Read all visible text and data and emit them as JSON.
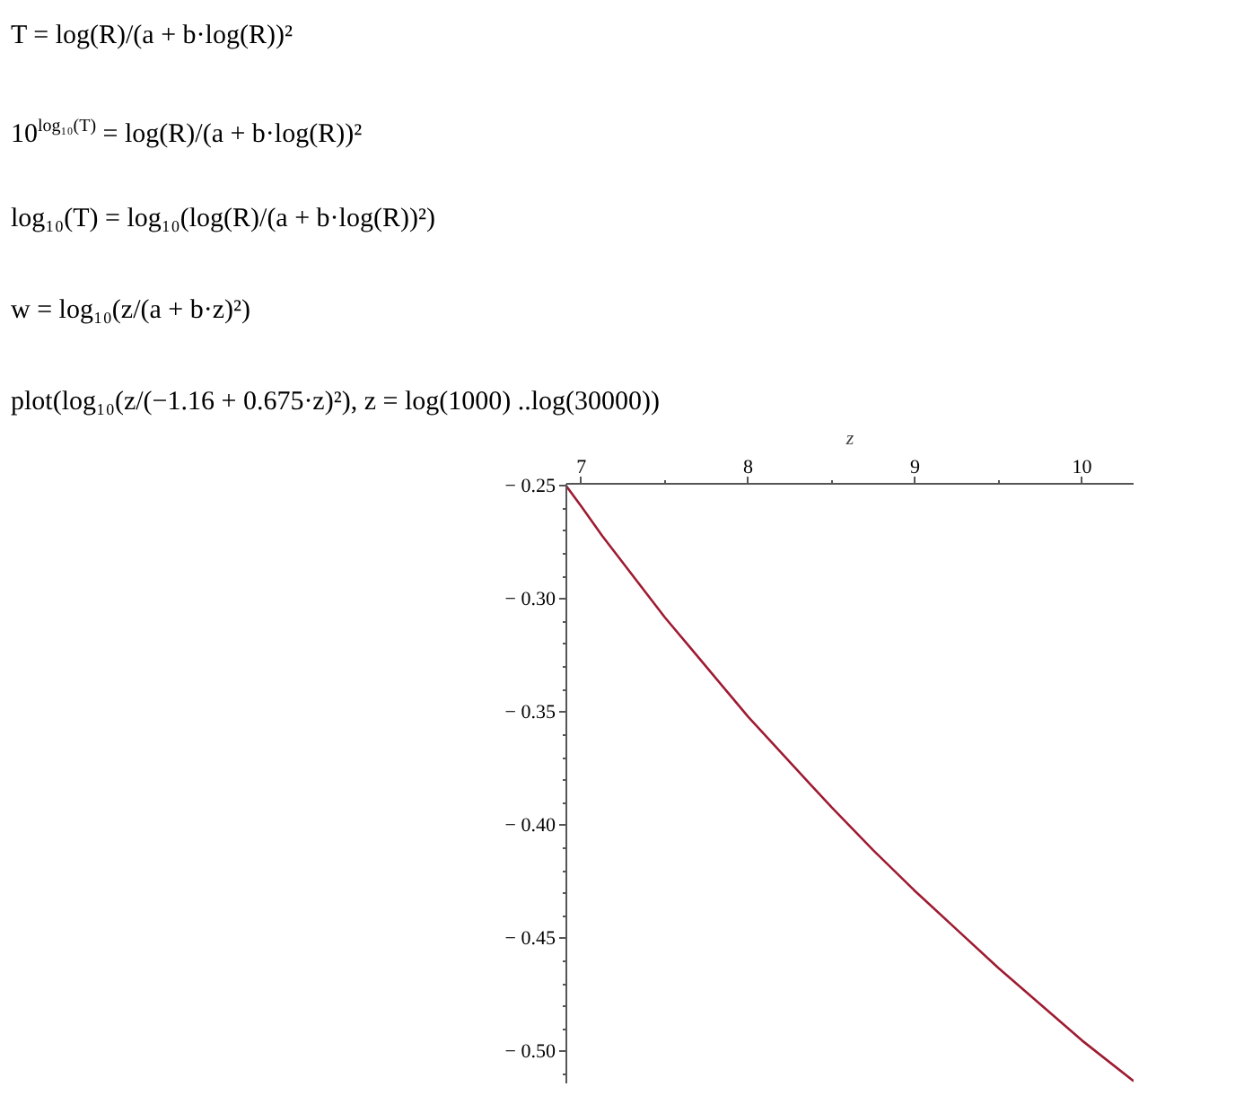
{
  "chart_data": {
    "type": "line",
    "xlabel": "z",
    "annotations": [
      "T = log(R)/(a + b·log(R))²",
      "10$^{log₁₀(T)}$ = log(R)/(a + b·log(R))²",
      "log₁₀(T) = log₁₀(log(R)/(a + b·log(R))²)",
      "w = log₁₀(z/(a + b·z)²)",
      "plot(log₁₀(z/(−1.16 + 0.675·z)²), z = log(1000) ..log(30000))"
    ],
    "x": [
      6.91,
      7,
      7.125,
      7.25,
      7.375,
      7.5,
      7.625,
      7.75,
      7.875,
      8,
      8.125,
      8.25,
      8.375,
      8.5,
      8.75,
      9,
      9.25,
      9.5,
      9.75,
      10,
      10.31
    ],
    "series": [
      {
        "color": "#9e1b32",
        "values": [
          -0.25,
          -0.259,
          -0.272,
          -0.284,
          -0.296,
          -0.308,
          -0.319,
          -0.33,
          -0.341,
          -0.352,
          -0.362,
          -0.372,
          -0.382,
          -0.392,
          -0.411,
          -0.429,
          -0.446,
          -0.463,
          -0.479,
          -0.495,
          -0.513
        ]
      }
    ],
    "xlim": [
      6.91,
      10.31
    ],
    "ylim": [
      -0.514,
      -0.249
    ],
    "xticks": [
      7,
      {
        "value": 7.5,
        "label": null
      },
      8,
      {
        "value": 8.5,
        "label": null
      },
      9,
      {
        "value": 9.5,
        "label": null
      },
      10
    ],
    "yticks": [
      {
        "value": -0.25,
        "label": "− 0.25"
      },
      {
        "value": -0.26,
        "label": null
      },
      {
        "value": -0.27,
        "label": null
      },
      {
        "value": -0.28,
        "label": null
      },
      {
        "value": -0.29,
        "label": null
      },
      {
        "value": -0.3,
        "label": "− 0.30"
      },
      {
        "value": -0.31,
        "label": null
      },
      {
        "value": -0.32,
        "label": null
      },
      {
        "value": -0.33,
        "label": null
      },
      {
        "value": -0.34,
        "label": null
      },
      {
        "value": -0.35,
        "label": "− 0.35"
      },
      {
        "value": -0.36,
        "label": null
      },
      {
        "value": -0.37,
        "label": null
      },
      {
        "value": -0.38,
        "label": null
      },
      {
        "value": -0.39,
        "label": null
      },
      {
        "value": -0.4,
        "label": "− 0.40"
      },
      {
        "value": -0.41,
        "label": null
      },
      {
        "value": -0.42,
        "label": null
      },
      {
        "value": -0.43,
        "label": null
      },
      {
        "value": -0.44,
        "label": null
      },
      {
        "value": -0.45,
        "label": "− 0.45"
      },
      {
        "value": -0.46,
        "label": null
      },
      {
        "value": -0.47,
        "label": null
      },
      {
        "value": -0.48,
        "label": null
      },
      {
        "value": -0.49,
        "label": null
      },
      {
        "value": -0.5,
        "label": "− 0.50"
      },
      {
        "value": -0.51,
        "label": null
      }
    ],
    "line_style": "solid"
  }
}
